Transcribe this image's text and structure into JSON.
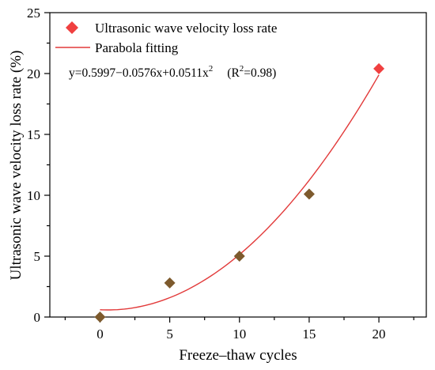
{
  "chart_data": {
    "type": "scatter",
    "title": "",
    "xlabel": "Freeze–thaw cycles",
    "ylabel": "Ultrasonic wave velocity loss rate (%)",
    "xlim": [
      -3.6,
      23.4
    ],
    "ylim": [
      0,
      25
    ],
    "xticks": [
      0,
      5,
      10,
      15,
      20
    ],
    "yticks": [
      0,
      5,
      10,
      15,
      20,
      25
    ],
    "xtick_labels": [
      "0",
      "5",
      "10",
      "15",
      "20"
    ],
    "ytick_labels": [
      "0",
      "5",
      "10",
      "15",
      "20",
      "25"
    ],
    "grid": false,
    "legend_position": "top-left",
    "series": [
      {
        "name": "Ultrasonic wave velocity loss rate",
        "kind": "scatter",
        "marker": "diamond",
        "color": "#f04040",
        "x": [
          0,
          5,
          10,
          15,
          20
        ],
        "y": [
          0,
          2.8,
          5.0,
          10.1,
          20.4
        ]
      },
      {
        "name": "Parabola fitting",
        "kind": "line",
        "color": "#e23a3a",
        "overlay_color": "#7d5a2d",
        "equation": {
          "lhs": "y=0.5997−0.0576x+0.0511x",
          "exp": "2",
          "r2_prefix": "(R",
          "r2_exp": "2",
          "r2_suffix": "=0.98)"
        },
        "coefficients": {
          "a": 0.5997,
          "b": -0.0576,
          "c": 0.0511
        },
        "x_range": [
          0,
          20
        ]
      }
    ]
  }
}
